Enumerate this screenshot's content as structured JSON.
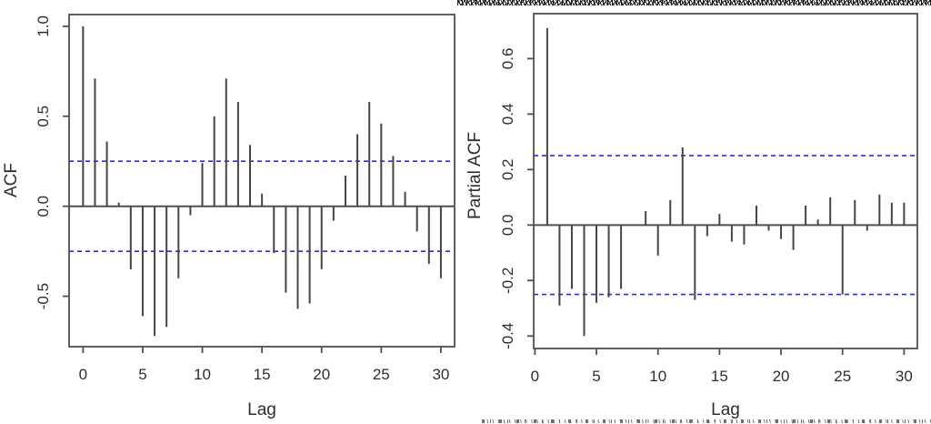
{
  "figure": {
    "background": "#ffffff",
    "colors": {
      "bar": "#454545",
      "axis": "#4f4f4f",
      "text": "#2e2e2e",
      "confidence": "#2a2ae0"
    }
  },
  "chart_data": [
    {
      "type": "bar",
      "subtype": "stem-correlogram",
      "title": "",
      "xlabel": "Lag",
      "ylabel": "ACF",
      "x": [
        0,
        1,
        2,
        3,
        4,
        5,
        6,
        7,
        8,
        9,
        10,
        11,
        12,
        13,
        14,
        15,
        16,
        17,
        18,
        19,
        20,
        21,
        22,
        23,
        24,
        25,
        26,
        27,
        28,
        29,
        30
      ],
      "values": [
        1.0,
        0.71,
        0.36,
        0.02,
        -0.35,
        -0.61,
        -0.72,
        -0.67,
        -0.4,
        -0.05,
        0.24,
        0.5,
        0.71,
        0.58,
        0.34,
        0.07,
        -0.26,
        -0.48,
        -0.57,
        -0.54,
        -0.35,
        -0.08,
        0.17,
        0.4,
        0.58,
        0.46,
        0.28,
        0.08,
        -0.14,
        -0.32,
        -0.4
      ],
      "xticks": [
        0,
        5,
        10,
        15,
        20,
        25,
        30
      ],
      "xtick_labels": [
        "0",
        "5",
        "10",
        "15",
        "20",
        "25",
        "30"
      ],
      "yticks": [
        1.0,
        0.5,
        0.0,
        -0.5
      ],
      "ytick_labels": [
        "1.0",
        "0.5",
        "0.0",
        "-0.5"
      ],
      "xlim": [
        -1.17,
        31.15
      ],
      "ylim": [
        -0.78,
        1.065
      ],
      "confidence_bounds": [
        0.25,
        -0.25
      ],
      "confidence_style": "dashed",
      "grid": false,
      "legend": null
    },
    {
      "type": "bar",
      "subtype": "stem-correlogram",
      "title": "",
      "xlabel": "Lag",
      "ylabel": "Partial ACF",
      "x": [
        1,
        2,
        3,
        4,
        5,
        6,
        7,
        8,
        9,
        10,
        11,
        12,
        13,
        14,
        15,
        16,
        17,
        18,
        19,
        20,
        21,
        22,
        23,
        24,
        25,
        26,
        27,
        28,
        29,
        30
      ],
      "values": [
        0.71,
        -0.29,
        -0.23,
        -0.4,
        -0.28,
        -0.26,
        -0.23,
        0.0,
        0.05,
        -0.11,
        0.09,
        0.28,
        -0.27,
        -0.04,
        0.04,
        -0.06,
        -0.07,
        0.07,
        -0.02,
        -0.05,
        -0.09,
        0.07,
        0.02,
        0.1,
        -0.25,
        0.09,
        -0.02,
        0.11,
        0.08,
        0.08
      ],
      "xticks": [
        0,
        5,
        10,
        15,
        20,
        25,
        30
      ],
      "xtick_labels": [
        "0",
        "5",
        "10",
        "15",
        "20",
        "25",
        "30"
      ],
      "yticks": [
        0.6,
        0.4,
        0.2,
        0.0,
        -0.2,
        -0.4
      ],
      "ytick_labels": [
        "0.6",
        "0.4",
        "0.2",
        "0.0",
        "-0.2",
        "-0.4"
      ],
      "xlim": [
        -0.1,
        31.08
      ],
      "ylim": [
        -0.445,
        0.762
      ],
      "confidence_bounds": [
        0.25,
        -0.25
      ],
      "confidence_style": "dashed",
      "grid": false,
      "legend": null
    }
  ]
}
